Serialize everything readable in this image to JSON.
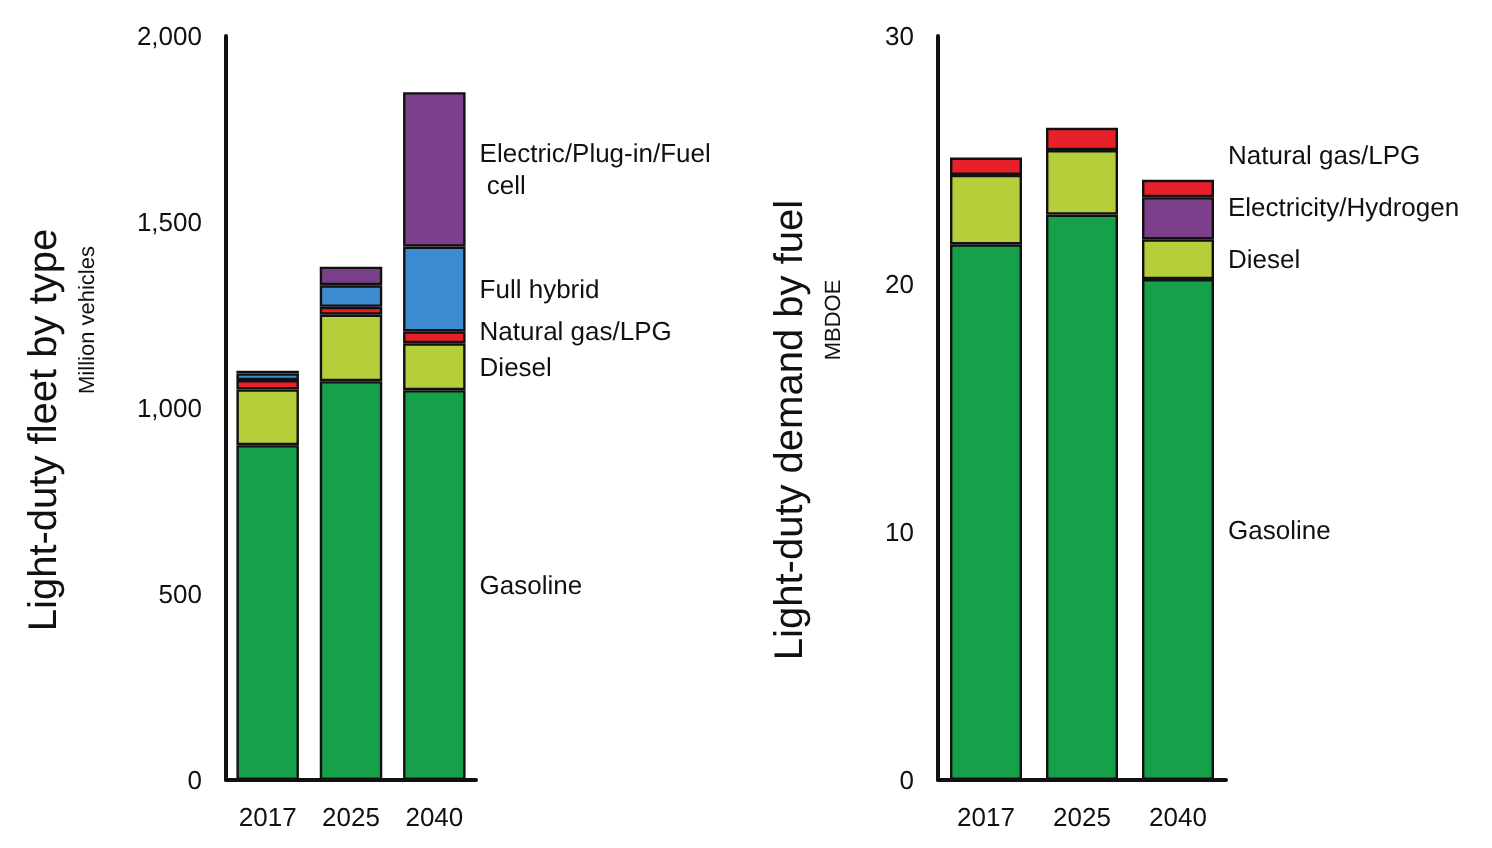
{
  "chart_data": [
    {
      "type": "bar",
      "stacked": true,
      "ylabel": "Light-duty fleet by type",
      "annotations": [
        "Million vehicles"
      ],
      "categories": [
        "2017",
        "2025",
        "2040"
      ],
      "ylim": [
        0,
        2000
      ],
      "yticks": [
        0,
        500,
        {
          "value": 1000,
          "label": "1,000"
        },
        {
          "value": 1500,
          "label": "1,500"
        },
        {
          "value": 2000,
          "label": "2,000"
        }
      ],
      "series": [
        {
          "name": "Gasoline",
          "color": "#16a04a",
          "values": [
            900,
            1072,
            1048
          ]
        },
        {
          "name": "Diesel",
          "color": "#b5cf3a",
          "values": [
            150,
            179,
            126
          ]
        },
        {
          "name": "Natural gas/LPG",
          "color": "#e8202a",
          "values": [
            25,
            21,
            32
          ]
        },
        {
          "name": "Full hybrid",
          "color": "#3d8bd0",
          "values": [
            18,
            58,
            228
          ]
        },
        {
          "name": "Electric/Plug-in/Fuel cell",
          "color": "#7b3f8c",
          "values": [
            7,
            50,
            415
          ]
        }
      ]
    },
    {
      "type": "bar",
      "stacked": true,
      "ylabel": "Light-duty demand by fuel",
      "annotations": [
        "MBDOE"
      ],
      "categories": [
        "2017",
        "2025",
        "2040"
      ],
      "ylim": [
        0,
        30
      ],
      "yticks": [
        0,
        10,
        20,
        30
      ],
      "series": [
        {
          "name": "Gasoline",
          "color": "#16a04a",
          "values": [
            21.6,
            22.8,
            20.2
          ]
        },
        {
          "name": "Diesel",
          "color": "#b5cf3a",
          "values": [
            2.8,
            2.6,
            1.6
          ]
        },
        {
          "name": "Electricity/Hydrogen",
          "color": "#7b3f8c",
          "values": [
            0,
            0,
            1.7
          ]
        },
        {
          "name": "Natural gas/LPG",
          "color": "#e8202a",
          "values": [
            0.7,
            0.9,
            0.7
          ]
        }
      ]
    }
  ]
}
